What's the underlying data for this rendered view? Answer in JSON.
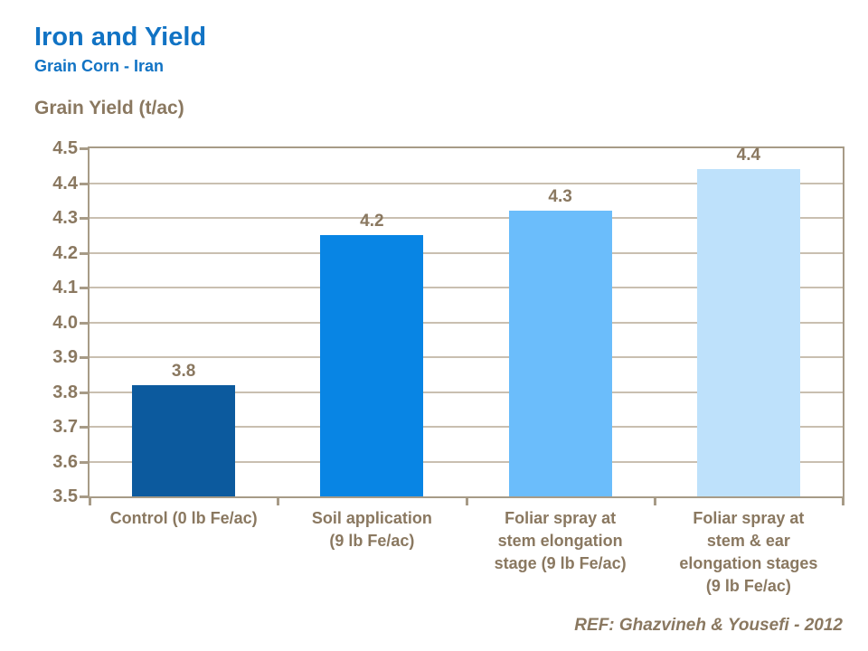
{
  "header": {
    "title": "Iron and Yield",
    "subtitle": "Grain Corn - Iran"
  },
  "footer": {
    "reference": "REF: Ghazvineh & Yousefi - 2012"
  },
  "colors": {
    "title_blue": "#1173C4",
    "text_taupe": "#8A7860",
    "gridline": "#C9BFB0",
    "axis_border": "#A79B87"
  },
  "chart_data": {
    "type": "bar",
    "title": "Iron and Yield",
    "subtitle": "Grain Corn - Iran",
    "ylabel": "Grain Yield (t/ac)",
    "xlabel": "",
    "categories": [
      "Control (0 lb Fe/ac)",
      "Soil application\n(9 lb Fe/ac)",
      "Foliar spray at\nstem elongation\nstage (9 lb Fe/ac)",
      "Foliar spray at\nstem & ear\nelongation stages\n(9 lb Fe/ac)"
    ],
    "values": [
      3.8,
      4.2,
      4.3,
      4.4
    ],
    "plotted_values": [
      3.82,
      4.25,
      4.32,
      4.44
    ],
    "data_labels": [
      "3.8",
      "4.2",
      "4.3",
      "4.4"
    ],
    "bar_colors": [
      "#0C5A9E",
      "#0885E4",
      "#6BBDFB",
      "#BEE1FB"
    ],
    "ylim": [
      3.5,
      4.5
    ],
    "ytick_step": 0.1,
    "ytick_labels": [
      "4.5",
      "4.4",
      "4.3",
      "4.2",
      "4.1",
      "4.0",
      "3.9",
      "3.8",
      "3.7",
      "3.6",
      "3.5"
    ],
    "grid": true,
    "legend": false,
    "reference": "REF: Ghazvineh & Yousefi - 2012"
  }
}
